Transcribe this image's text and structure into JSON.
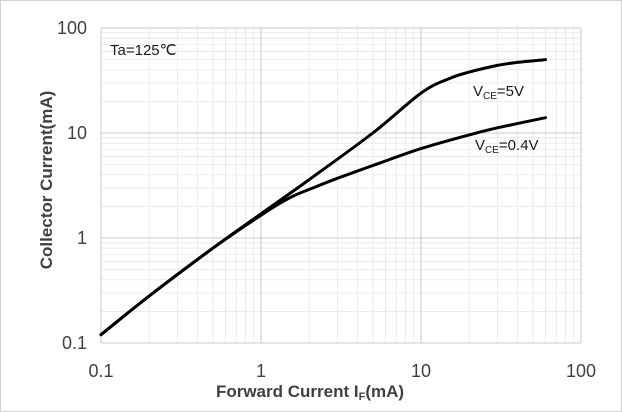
{
  "chart_data": {
    "type": "line",
    "title": "",
    "xlabel": "Forward Current I",
    "xlabel_sub": "F",
    "xlabel_unit": "(mA)",
    "ylabel": "Collector Current(mA)",
    "xscale": "log",
    "yscale": "log",
    "xlim": [
      0.1,
      100
    ],
    "ylim": [
      0.1,
      100
    ],
    "grid": true,
    "x_ticks": [
      0.1,
      1,
      10,
      100
    ],
    "x_tick_labels": [
      "0.1",
      "1",
      "10",
      "100"
    ],
    "y_ticks": [
      0.1,
      1,
      10,
      100
    ],
    "y_tick_labels": [
      "0.1",
      "1",
      "10",
      "100"
    ],
    "annotation": "Ta=125℃",
    "series": [
      {
        "label_main": "V",
        "label_sub": "CE",
        "label_rest": "=5V",
        "x": [
          0.1,
          0.2,
          0.5,
          1,
          2,
          5,
          10,
          15,
          20,
          30,
          40,
          60
        ],
        "y": [
          0.12,
          0.28,
          0.8,
          1.7,
          3.6,
          10,
          24,
          33,
          38,
          44,
          47,
          50
        ]
      },
      {
        "label_main": "V",
        "label_sub": "CE",
        "label_rest": "=0.4V",
        "x": [
          0.1,
          0.2,
          0.5,
          1,
          1.5,
          2,
          3,
          5,
          10,
          20,
          30,
          60
        ],
        "y": [
          0.12,
          0.28,
          0.8,
          1.65,
          2.4,
          2.9,
          3.7,
          4.9,
          7.1,
          9.6,
          11.2,
          14
        ]
      }
    ]
  }
}
